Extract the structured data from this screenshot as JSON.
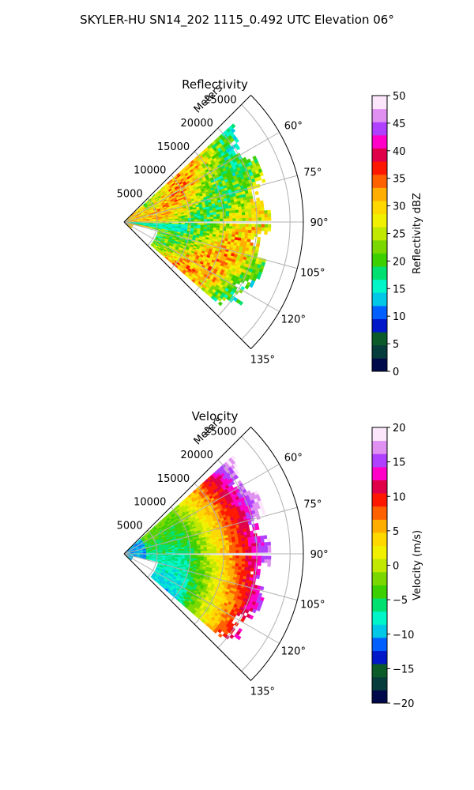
{
  "suptitle": "SKYLER-HU  SN14_202  1115_0.492 UTC Elevation 06°",
  "chart_data": [
    {
      "type": "heatmap",
      "projection": "polar-sector",
      "title": "Reflectivity",
      "radial_label": "Meters",
      "radial_ticks": [
        "5000",
        "10000",
        "15000",
        "20000",
        "25000"
      ],
      "radial_values": [
        5000,
        10000,
        15000,
        20000,
        25000
      ],
      "rlim": [
        0,
        27000
      ],
      "azimuth_range_deg": [
        45,
        135
      ],
      "angular_ticks": [
        "60°",
        "75°",
        "90°",
        "105°",
        "120°",
        "135°"
      ],
      "angular_values": [
        60,
        75,
        90,
        105,
        120,
        135
      ],
      "grid": true,
      "field": "reflectivity",
      "colorbar": {
        "label": "Reflectivity dBZ",
        "range": [
          0,
          50
        ],
        "ticks": [
          "0",
          "5",
          "10",
          "15",
          "20",
          "25",
          "30",
          "35",
          "40",
          "45",
          "50"
        ],
        "colors": [
          "#000a4a",
          "#073c3c",
          "#0a5a2a",
          "#0018c8",
          "#0060ff",
          "#00c8e6",
          "#00f5c8",
          "#00e070",
          "#3cd000",
          "#7ad800",
          "#c0e800",
          "#f0f000",
          "#ffd800",
          "#ffae00",
          "#ff6000",
          "#ff1800",
          "#e0004a",
          "#ff00c8",
          "#b040ff",
          "#e090f0",
          "#fbe6fb"
        ]
      }
    },
    {
      "type": "heatmap",
      "projection": "polar-sector",
      "title": "Velocity",
      "radial_label": "Meters",
      "radial_ticks": [
        "5000",
        "10000",
        "15000",
        "20000",
        "25000"
      ],
      "radial_values": [
        5000,
        10000,
        15000,
        20000,
        25000
      ],
      "rlim": [
        0,
        27000
      ],
      "azimuth_range_deg": [
        45,
        135
      ],
      "angular_ticks": [
        "60°",
        "75°",
        "90°",
        "105°",
        "120°",
        "135°"
      ],
      "angular_values": [
        60,
        75,
        90,
        105,
        120,
        135
      ],
      "grid": true,
      "field": "velocity",
      "colorbar": {
        "label": "Velocity (m/s)",
        "range": [
          -20,
          20
        ],
        "ticks": [
          "−20",
          "−15",
          "−10",
          "−5",
          "0",
          "5",
          "10",
          "15",
          "20"
        ],
        "colors": [
          "#000a4a",
          "#073c3c",
          "#0a5a2a",
          "#0018c8",
          "#0060ff",
          "#00c8e6",
          "#00f5c8",
          "#00e070",
          "#3cd000",
          "#7ad800",
          "#c0e800",
          "#f0f000",
          "#ffd800",
          "#ffae00",
          "#ff6000",
          "#ff1800",
          "#e0004a",
          "#ff00c8",
          "#b040ff",
          "#e090f0",
          "#fbe6fb"
        ]
      }
    }
  ]
}
